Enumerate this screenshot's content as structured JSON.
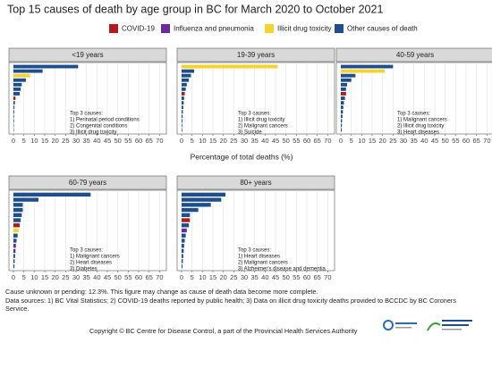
{
  "title": "Top 15 causes of death by age group in BC for March 2020 to October 2021",
  "legend": [
    {
      "name": "COVID-19",
      "color": "#b01c1c"
    },
    {
      "name": "Influenza and pneumonia",
      "color": "#6a2aa0"
    },
    {
      "name": "Illicit drug toxicity",
      "color": "#f7d22e"
    },
    {
      "name": "Other causes of death",
      "color": "#1f4e8c"
    }
  ],
  "x_label": "Percentage of total deaths (%)",
  "footnotes": [
    "Cause unknown or pending: 12.3%. This figure may change as cause of death data become more complete.",
    "Data sources: 1) BC Vital Statistics; 2) COVID-19 deaths reported by public health; 3) Data on illicit drug toxicity deaths provided to BCCDC by BC Coroners",
    "Service."
  ],
  "copyright": "Copyright © BC Centre for Disease Control, a part of the Provincial Health Services Authority",
  "chart_data": [
    {
      "type": "bar",
      "title": "<19 years",
      "values": [
        31,
        14,
        8,
        6,
        4,
        3.5,
        3,
        1,
        0.7,
        0.5,
        0.4,
        0.3,
        0.3,
        0.2,
        0.2
      ],
      "colors": [
        "#1f4e8c",
        "#1f4e8c",
        "#f7d22e",
        "#1f4e8c",
        "#1f4e8c",
        "#1f4e8c",
        "#1f4e8c",
        "#b01c1c",
        "#1f4e8c",
        "#1f4e8c",
        "#1f4e8c",
        "#1f4e8c",
        "#1f4e8c",
        "#1f4e8c",
        "#1f4e8c"
      ],
      "annotation": [
        "Top 3 causes:",
        "1) Perinatal period conditions",
        "2) Congenital conditions",
        "3) Illicit drug toxicity"
      ],
      "xlim": [
        0,
        72
      ],
      "xticks": [
        0,
        5,
        10,
        15,
        20,
        25,
        30,
        35,
        40,
        45,
        50,
        55,
        60,
        65,
        70
      ]
    },
    {
      "type": "bar",
      "title": "19-39 years",
      "values": [
        46,
        6,
        4.5,
        3.5,
        2.5,
        2,
        1.5,
        1.2,
        1,
        0.8,
        0.6,
        0.5,
        0.4,
        0.3,
        0.3
      ],
      "colors": [
        "#f7d22e",
        "#1f4e8c",
        "#1f4e8c",
        "#1f4e8c",
        "#1f4e8c",
        "#1f4e8c",
        "#b01c1c",
        "#1f4e8c",
        "#1f4e8c",
        "#1f4e8c",
        "#1f4e8c",
        "#1f4e8c",
        "#1f4e8c",
        "#1f4e8c",
        "#1f4e8c"
      ],
      "annotation": [
        "Top 3 causes:",
        "1) Illicit drug toxicity",
        "2) Malignant cancers",
        "3) Suicide"
      ],
      "xlim": [
        0,
        72
      ],
      "xticks": [
        0,
        5,
        10,
        15,
        20,
        25,
        30,
        35,
        40,
        45,
        50,
        55,
        60,
        65,
        70
      ]
    },
    {
      "type": "bar",
      "title": "40-59 years",
      "values": [
        25,
        21,
        7,
        5,
        3,
        2.5,
        2.5,
        2,
        1.5,
        1.2,
        1,
        0.8,
        0.6,
        0.5,
        0.4
      ],
      "colors": [
        "#1f4e8c",
        "#f7d22e",
        "#1f4e8c",
        "#1f4e8c",
        "#1f4e8c",
        "#1f4e8c",
        "#b01c1c",
        "#1f4e8c",
        "#1f4e8c",
        "#1f4e8c",
        "#1f4e8c",
        "#1f4e8c",
        "#1f4e8c",
        "#1f4e8c",
        "#1f4e8c"
      ],
      "annotation": [
        "Top 3 causes:",
        "1) Malignant cancers",
        "2) Illicit drug toxicity",
        "3) Heart diseases"
      ],
      "xlim": [
        0,
        72
      ],
      "xticks": [
        0,
        5,
        10,
        15,
        20,
        25,
        30,
        35,
        40,
        45,
        50,
        55,
        60,
        65,
        70
      ]
    },
    {
      "type": "bar",
      "title": "60-79 years",
      "values": [
        37,
        12,
        4.5,
        4.5,
        4,
        3.5,
        3,
        2.5,
        2,
        1.5,
        1.2,
        1,
        0.8,
        0.6,
        0.5
      ],
      "colors": [
        "#1f4e8c",
        "#1f4e8c",
        "#1f4e8c",
        "#1f4e8c",
        "#1f4e8c",
        "#1f4e8c",
        "#b01c1c",
        "#f7d22e",
        "#1f4e8c",
        "#1f4e8c",
        "#6a2aa0",
        "#1f4e8c",
        "#1f4e8c",
        "#1f4e8c",
        "#1f4e8c"
      ],
      "annotation": [
        "Top 3 causes:",
        "1) Malignant cancers",
        "2) Heart diseases",
        "3) Diabetes"
      ],
      "xlim": [
        0,
        72
      ],
      "xticks": [
        0,
        5,
        10,
        15,
        20,
        25,
        30,
        35,
        40,
        45,
        50,
        55,
        60,
        65,
        70
      ]
    },
    {
      "type": "bar",
      "title": "80+ years",
      "values": [
        21,
        19,
        14,
        8,
        4,
        4,
        3.5,
        2.5,
        2,
        1.5,
        1.2,
        1,
        0.8,
        0.6,
        0.4
      ],
      "colors": [
        "#1f4e8c",
        "#1f4e8c",
        "#1f4e8c",
        "#1f4e8c",
        "#1f4e8c",
        "#b01c1c",
        "#1f4e8c",
        "#6a2aa0",
        "#1f4e8c",
        "#1f4e8c",
        "#1f4e8c",
        "#1f4e8c",
        "#1f4e8c",
        "#1f4e8c",
        "#1f4e8c"
      ],
      "annotation": [
        "Top 3 causes:",
        "1) Heart diseases",
        "2) Malignant cancers",
        "3) Alzheimer's disease and dementia"
      ],
      "xlim": [
        0,
        72
      ],
      "xticks": [
        0,
        5,
        10,
        15,
        20,
        25,
        30,
        35,
        40,
        45,
        50,
        55,
        60,
        65,
        70
      ]
    }
  ]
}
